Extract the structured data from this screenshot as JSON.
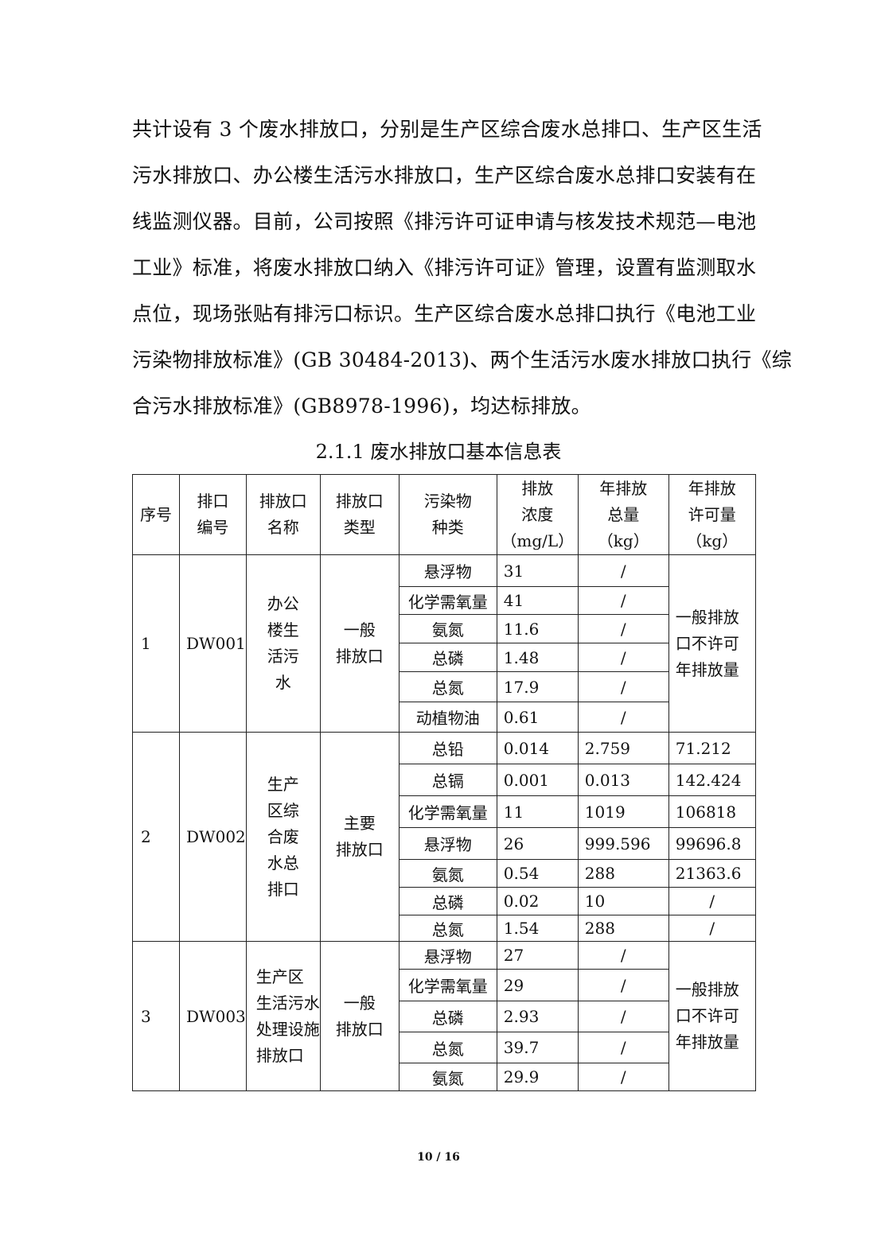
{
  "paragraph_lines": [
    "共计设有 3 个废水排放口，分别是生产区综合废水总排口、生产区生活",
    "污水排放口、办公楼生活污水排放口，生产区综合废水总排口安装有在",
    "线监测仪器。目前，公司按照《排污许可证申请与核发技术规范—电池",
    "工业》标准，将废水排放口纳入《排污许可证》管理，设置有监测取水",
    "点位，现场张贴有排污口标识。生产区综合废水总排口执行《电池工业",
    "污染物排放标准》(GB 30484-2013)、两个生活污水废水排放口执行《综",
    "合污水排放标准》(GB8978-1996)，均达标排放。"
  ],
  "table_caption": "2.1.1 废水排放口基本信息表",
  "table": {
    "headers": [
      [
        "序号"
      ],
      [
        "排口",
        "编号"
      ],
      [
        "排放口",
        "名称"
      ],
      [
        "排放口",
        "类型"
      ],
      [
        "污染物",
        "种类"
      ],
      [
        "排放",
        "浓度",
        "（mg/L）"
      ],
      [
        "年排放",
        "总量",
        "（kg）"
      ],
      [
        "年排放",
        "许可量",
        "（kg）"
      ]
    ],
    "groups": [
      {
        "no": "1",
        "code": "DW001",
        "name": [
          "办公",
          "楼生",
          "活污",
          "水"
        ],
        "type": [
          "一般",
          "排放口"
        ],
        "permit_note": [
          "一般排放",
          "口不许可",
          "年排放量"
        ],
        "rows": [
          {
            "pollutant": "悬浮物",
            "conc": "31",
            "annual": "/"
          },
          {
            "pollutant": "化学需氧量",
            "conc": "41",
            "annual": "/"
          },
          {
            "pollutant": "氨氮",
            "conc": "11.6",
            "annual": "/"
          },
          {
            "pollutant": "总磷",
            "conc": "1.48",
            "annual": "/"
          },
          {
            "pollutant": "总氮",
            "conc": "17.9",
            "annual": "/"
          },
          {
            "pollutant": "动植物油",
            "conc": "0.61",
            "annual": "/"
          }
        ]
      },
      {
        "no": "2",
        "code": "DW002",
        "name": [
          "生产",
          "区综",
          "合废",
          "水总",
          "排口"
        ],
        "type": [
          "主要",
          "排放口"
        ],
        "rows": [
          {
            "pollutant": "总铅",
            "conc": "0.014",
            "annual": "2.759",
            "permit": "71.212"
          },
          {
            "pollutant": "总镉",
            "conc": "0.001",
            "annual": "0.013",
            "permit": "142.424"
          },
          {
            "pollutant": "化学需氧量",
            "conc": "11",
            "annual": "1019",
            "permit": "106818"
          },
          {
            "pollutant": "悬浮物",
            "conc": "26",
            "annual": "999.596",
            "permit": "99696.8"
          },
          {
            "pollutant": "氨氮",
            "conc": "0.54",
            "annual": "288",
            "permit": "21363.6"
          },
          {
            "pollutant": "总磷",
            "conc": "0.02",
            "annual": "10",
            "permit": "/"
          },
          {
            "pollutant": "总氮",
            "conc": "1.54",
            "annual": "288",
            "permit": "/"
          }
        ]
      },
      {
        "no": "3",
        "code": "DW003",
        "name": [
          "生产区",
          "生活污水",
          "处理设施",
          "排放口"
        ],
        "type": [
          "一般",
          "排放口"
        ],
        "permit_note": [
          "一般排放",
          "口不许可",
          "年排放量"
        ],
        "rows": [
          {
            "pollutant": "悬浮物",
            "conc": "27",
            "annual": "/"
          },
          {
            "pollutant": "化学需氧量",
            "conc": "29",
            "annual": "/"
          },
          {
            "pollutant": "总磷",
            "conc": "2.93",
            "annual": "/"
          },
          {
            "pollutant": "总氮",
            "conc": "39.7",
            "annual": "/"
          },
          {
            "pollutant": "氨氮",
            "conc": "29.9",
            "annual": "/"
          }
        ]
      }
    ]
  },
  "footer": {
    "page": "10 / 16"
  }
}
